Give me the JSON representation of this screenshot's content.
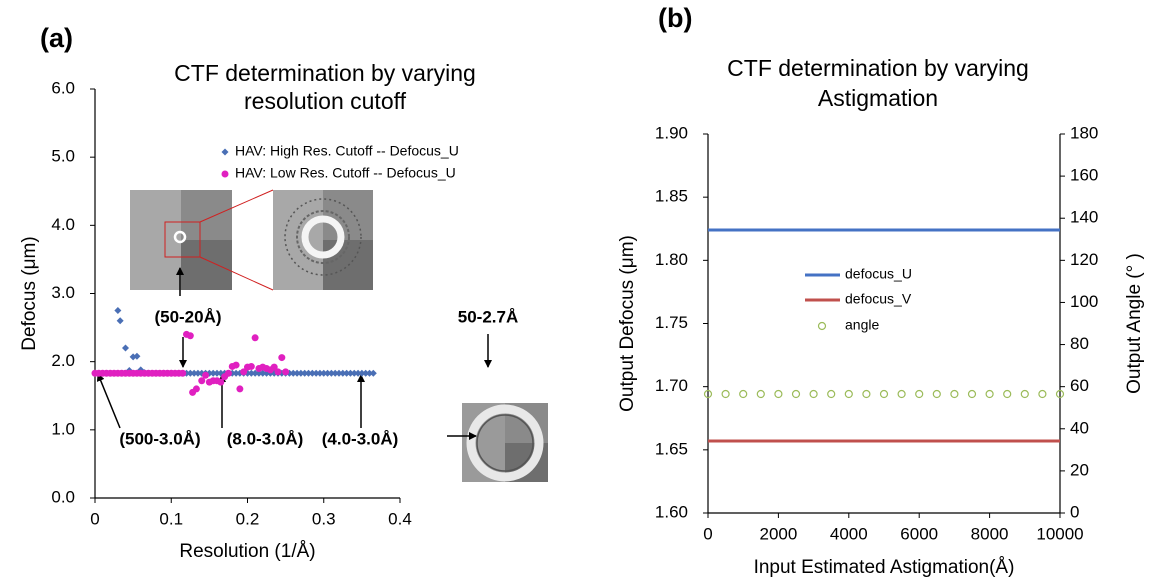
{
  "chart_data": [
    {
      "type": "scatter",
      "panel_label": "(a)",
      "title": [
        "CTF determination by varying",
        "resolution cutoff"
      ],
      "x_label": "Resolution (1/Å)",
      "y_label": "Defocus (μm)",
      "xlim": [
        0,
        0.4
      ],
      "xticks": [
        0,
        0.1,
        0.2,
        0.3,
        0.4
      ],
      "ylim": [
        0,
        6
      ],
      "yticks": [
        {
          "value": 0,
          "label": "0.0"
        },
        {
          "value": 1,
          "label": "1.0"
        },
        {
          "value": 2,
          "label": "2.0"
        },
        {
          "value": 3,
          "label": "3.0"
        },
        {
          "value": 4,
          "label": "4.0"
        },
        {
          "value": 5,
          "label": "5.0"
        },
        {
          "value": 6,
          "label": "6.0"
        }
      ],
      "series": [
        {
          "name": "HAV: High Res. Cutoff -- Defocus_U",
          "color": "#4a6fb5",
          "marker": "diamond",
          "x": [
            0.03,
            0.033,
            0.04,
            0.045,
            0.05,
            0.055,
            0.06,
            0.065,
            0.07,
            0.08,
            0.09,
            0.1,
            0.11,
            0.12,
            0.125,
            0.13,
            0.135,
            0.14,
            0.145,
            0.15,
            0.155,
            0.16,
            0.165,
            0.17,
            0.175,
            0.18,
            0.185,
            0.19,
            0.195,
            0.2,
            0.205,
            0.21,
            0.215,
            0.22,
            0.225,
            0.23,
            0.235,
            0.24,
            0.245,
            0.25,
            0.255,
            0.26,
            0.265,
            0.27,
            0.275,
            0.28,
            0.285,
            0.29,
            0.295,
            0.3,
            0.305,
            0.31,
            0.315,
            0.32,
            0.325,
            0.33,
            0.335,
            0.34,
            0.345,
            0.35,
            0.355,
            0.36,
            0.365
          ],
          "values": [
            2.75,
            2.6,
            2.2,
            1.87,
            2.07,
            2.08,
            1.88,
            1.84,
            1.83,
            1.83,
            1.83,
            1.83,
            1.83,
            1.83,
            1.83,
            1.83,
            1.83,
            1.83,
            1.83,
            1.83,
            1.83,
            1.83,
            1.83,
            1.83,
            1.83,
            1.83,
            1.83,
            1.83,
            1.83,
            1.83,
            1.83,
            1.83,
            1.83,
            1.83,
            1.83,
            1.83,
            1.83,
            1.83,
            1.83,
            1.83,
            1.83,
            1.83,
            1.83,
            1.83,
            1.83,
            1.83,
            1.83,
            1.83,
            1.83,
            1.83,
            1.83,
            1.83,
            1.83,
            1.83,
            1.83,
            1.83,
            1.83,
            1.83,
            1.83,
            1.83,
            1.83,
            1.83,
            1.83
          ]
        },
        {
          "name": "HAV: Low Res. Cutoff -- Defocus_U",
          "color": "#e020c0",
          "marker": "circle",
          "x": [
            0,
            0.005,
            0.01,
            0.015,
            0.02,
            0.025,
            0.03,
            0.035,
            0.04,
            0.045,
            0.05,
            0.055,
            0.06,
            0.065,
            0.07,
            0.075,
            0.08,
            0.085,
            0.09,
            0.095,
            0.1,
            0.105,
            0.11,
            0.115,
            0.12,
            0.125,
            0.128,
            0.133,
            0.14,
            0.145,
            0.15,
            0.155,
            0.16,
            0.165,
            0.17,
            0.175,
            0.18,
            0.185,
            0.19,
            0.195,
            0.2,
            0.205,
            0.21,
            0.215,
            0.22,
            0.225,
            0.23,
            0.235,
            0.24,
            0.245,
            0.25
          ],
          "values": [
            1.83,
            1.83,
            1.83,
            1.83,
            1.83,
            1.83,
            1.83,
            1.83,
            1.83,
            1.83,
            1.83,
            1.83,
            1.83,
            1.83,
            1.83,
            1.83,
            1.83,
            1.83,
            1.83,
            1.83,
            1.83,
            1.83,
            1.83,
            1.83,
            2.4,
            2.38,
            1.55,
            1.6,
            1.72,
            1.8,
            1.7,
            1.72,
            1.72,
            1.7,
            1.78,
            1.83,
            1.93,
            1.95,
            1.6,
            1.85,
            1.92,
            1.93,
            2.35,
            1.9,
            1.92,
            1.9,
            1.88,
            1.92,
            1.85,
            2.06,
            1.85
          ]
        }
      ],
      "annotations": [
        {
          "text": "(50-20Å)",
          "color": "#4a4ae0"
        },
        {
          "text": "50-2.7Å",
          "color": "#4a4ae0"
        },
        {
          "text": "(500-3.0Å)",
          "color": "#d020b8"
        },
        {
          "text": "(8.0-3.0Å)",
          "color": "#d020b8"
        },
        {
          "text": "(4.0-3.0Å)",
          "color": "#d020b8"
        }
      ]
    },
    {
      "type": "line",
      "panel_label": "(b)",
      "title": [
        "CTF determination by varying",
        "Astigmation"
      ],
      "x_label": "Input Estimated Astigmation(Å)",
      "y_label": "Output  Defocus (μm)",
      "y2_label": "Output  Angle (° )",
      "xlim": [
        0,
        10000
      ],
      "xticks": [
        0,
        2000,
        4000,
        6000,
        8000,
        10000
      ],
      "ylim": [
        1.6,
        1.9
      ],
      "yticks": [
        {
          "value": 1.6,
          "label": "1.60"
        },
        {
          "value": 1.65,
          "label": "1.65"
        },
        {
          "value": 1.7,
          "label": "1.70"
        },
        {
          "value": 1.75,
          "label": "1.75"
        },
        {
          "value": 1.8,
          "label": "1.80"
        },
        {
          "value": 1.85,
          "label": "1.85"
        },
        {
          "value": 1.9,
          "label": "1.90"
        }
      ],
      "y2lim": [
        0,
        180
      ],
      "y2ticks": [
        0,
        20,
        40,
        60,
        80,
        100,
        120,
        140,
        160,
        180
      ],
      "x": [
        0,
        1000,
        2000,
        3000,
        4000,
        5000,
        6000,
        7000,
        8000,
        9000,
        10000
      ],
      "series": [
        {
          "name": "defocus_U",
          "color": "#4472c4",
          "values": [
            1.824,
            1.824,
            1.824,
            1.824,
            1.824,
            1.824,
            1.824,
            1.824,
            1.824,
            1.824,
            1.824
          ]
        },
        {
          "name": "defocus_V",
          "color": "#c0504d",
          "values": [
            1.657,
            1.657,
            1.657,
            1.657,
            1.657,
            1.657,
            1.657,
            1.657,
            1.657,
            1.657,
            1.657
          ]
        },
        {
          "name": "angle",
          "color": "#9bbb59",
          "axis": "y2",
          "mode": "markers",
          "x": [
            0,
            500,
            1000,
            1500,
            2000,
            2500,
            3000,
            3500,
            4000,
            4500,
            5000,
            5500,
            6000,
            6500,
            7000,
            7500,
            8000,
            8500,
            9000,
            9500,
            10000
          ],
          "values": [
            56.5,
            56.5,
            56.5,
            56.5,
            56.5,
            56.5,
            56.5,
            56.5,
            56.5,
            56.5,
            56.5,
            56.5,
            56.5,
            56.5,
            56.5,
            56.5,
            56.5,
            56.5,
            56.5,
            56.5,
            56.5
          ]
        }
      ]
    }
  ]
}
